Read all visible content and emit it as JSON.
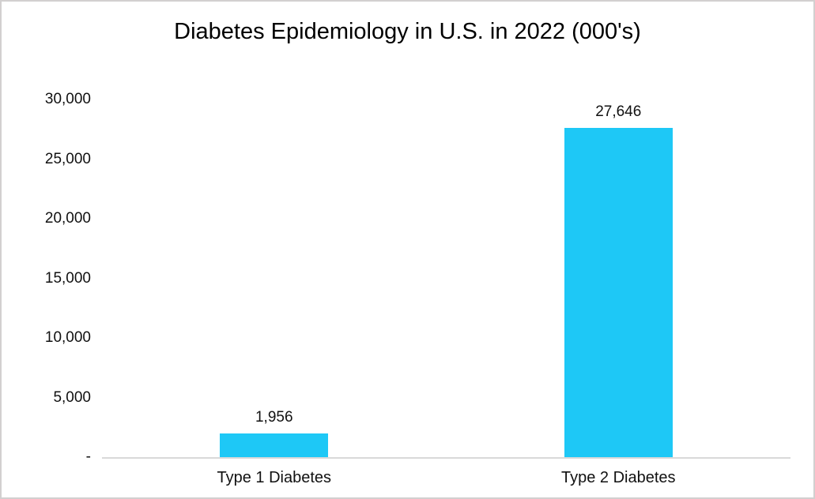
{
  "chart_data": {
    "type": "bar",
    "title": "Diabetes Epidemiology in U.S. in 2022 (000's)",
    "categories": [
      "Type 1 Diabetes",
      "Type 2 Diabetes"
    ],
    "values": [
      1956,
      27646
    ],
    "data_labels": [
      "1,956",
      "27,646"
    ],
    "yticks": [
      {
        "label": "-",
        "value": 0
      },
      {
        "label": "5,000",
        "value": 5000
      },
      {
        "label": "10,000",
        "value": 10000
      },
      {
        "label": "15,000",
        "value": 15000
      },
      {
        "label": "20,000",
        "value": 20000
      },
      {
        "label": "25,000",
        "value": 25000
      },
      {
        "label": "30,000",
        "value": 30000
      }
    ],
    "ylim": [
      0,
      30000
    ],
    "xlabel": "",
    "ylabel": "",
    "grid": false,
    "legend": false,
    "bar_color": "#1ec8f6",
    "axis_line_color": "#d9d9d9",
    "frame_border_color": "#d2d0d0"
  }
}
